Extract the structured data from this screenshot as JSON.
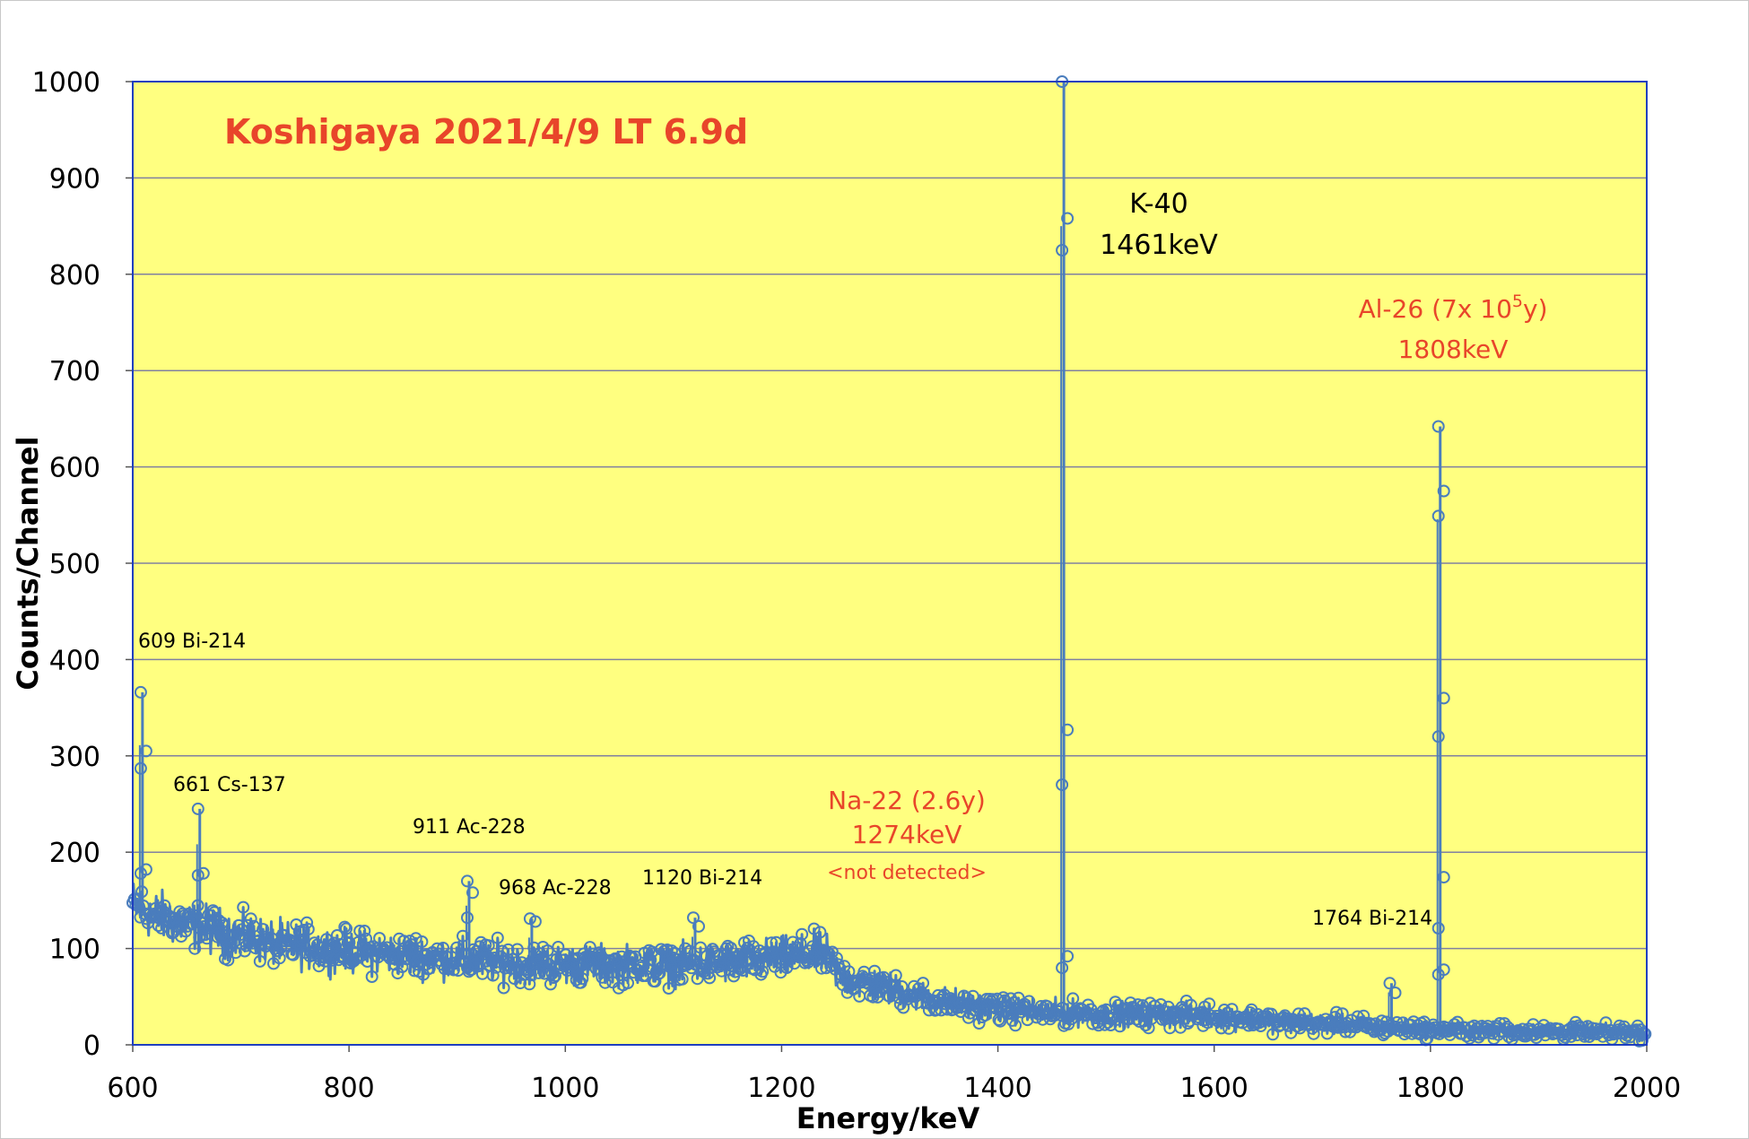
{
  "chart_data": {
    "type": "scatter",
    "title": "Koshigaya 2021/4/9 LT 6.9d",
    "xlabel": "Energy/keV",
    "ylabel": "Counts/Channel",
    "xlim": [
      600,
      2000
    ],
    "ylim": [
      0,
      1000
    ],
    "x_ticks": [
      "600",
      "800",
      "1000",
      "1200",
      "1400",
      "1600",
      "1800",
      "2000"
    ],
    "y_ticks": [
      "0",
      "100",
      "200",
      "300",
      "400",
      "500",
      "600",
      "700",
      "800",
      "900",
      "1000"
    ],
    "grid": "horizontal",
    "colors": {
      "plot_bg": "#ffff80",
      "series": "#4a7dbd",
      "grid": "#8080a0",
      "title": "#e8452a",
      "red_annotation": "#e8452a",
      "border": "#1f3fbf"
    },
    "continuum": [
      [
        600,
        145
      ],
      [
        620,
        135
      ],
      [
        650,
        125
      ],
      [
        700,
        112
      ],
      [
        750,
        103
      ],
      [
        800,
        97
      ],
      [
        850,
        93
      ],
      [
        900,
        89
      ],
      [
        950,
        85
      ],
      [
        1000,
        83
      ],
      [
        1050,
        83
      ],
      [
        1100,
        83
      ],
      [
        1150,
        85
      ],
      [
        1200,
        90
      ],
      [
        1240,
        95
      ],
      [
        1255,
        70
      ],
      [
        1300,
        58
      ],
      [
        1350,
        45
      ],
      [
        1400,
        37
      ],
      [
        1460,
        33
      ],
      [
        1500,
        32
      ],
      [
        1600,
        30
      ],
      [
        1650,
        25
      ],
      [
        1700,
        22
      ],
      [
        1800,
        16
      ],
      [
        1900,
        14
      ],
      [
        2000,
        13
      ]
    ],
    "peaks": [
      {
        "x": 609,
        "points": [
          366,
          305,
          287,
          182,
          178
        ]
      },
      {
        "x": 662,
        "points": [
          245,
          178,
          176
        ]
      },
      {
        "x": 911,
        "points": [
          170,
          158,
          132
        ]
      },
      {
        "x": 969,
        "points": [
          131,
          128
        ]
      },
      {
        "x": 1120,
        "points": [
          132,
          123
        ]
      },
      {
        "x": 1461,
        "points": [
          1000,
          858,
          825,
          327,
          270,
          92,
          80
        ]
      },
      {
        "x": 1764,
        "points": [
          64,
          54
        ]
      },
      {
        "x": 1809,
        "points": [
          642,
          575,
          549,
          360,
          320,
          174,
          121,
          78,
          73
        ]
      }
    ],
    "annotations": {
      "bi214_609": "609 Bi-214",
      "cs137_661": "661 Cs-137",
      "ac228_911": "911 Ac-228",
      "ac228_968": "968 Ac-228",
      "bi214_1120": "1120 Bi-214",
      "na22_line1": "Na-22 (2.6y)",
      "na22_line2": "1274keV",
      "na22_line3": "<not detected>",
      "k40_line1": "K-40",
      "k40_line2": "1461keV",
      "al26_prefix": "Al-26 (7x 10",
      "al26_sup": "5",
      "al26_suffix": "y)",
      "al26_line2": "1808keV",
      "bi214_1764": "1764 Bi-214"
    }
  }
}
